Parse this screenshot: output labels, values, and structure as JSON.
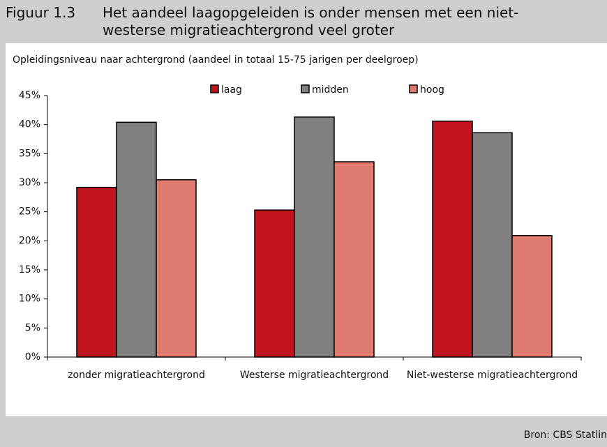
{
  "chart_data": {
    "type": "bar",
    "figure_number": "Figuur 1.3",
    "title": "Het aandeel laagopgeleiden is onder mensen met een niet-westerse migratieachtergrond veel groter",
    "subtitle": "Opleidingsniveau naar achtergrond (aandeel in totaal 15-75 jarigen per deelgroep)",
    "source": "Bron: CBS Statlin",
    "categories": [
      "zonder migratieachtergrond",
      "Westerse migratieachtergrond",
      "Niet-westerse migratieachtergrond"
    ],
    "series": [
      {
        "name": "laag",
        "color": "#c0141f",
        "values": [
          29.2,
          25.3,
          40.6
        ]
      },
      {
        "name": "midden",
        "color": "#808080",
        "values": [
          40.4,
          41.3,
          38.6
        ]
      },
      {
        "name": "hoog",
        "color": "#e07b70",
        "values": [
          30.5,
          33.6,
          20.9
        ]
      }
    ],
    "ylim": [
      0,
      45
    ],
    "yticks": [
      {
        "value": 0,
        "label": "0%"
      },
      {
        "value": 5,
        "label": "5%"
      },
      {
        "value": 10,
        "label": "10%"
      },
      {
        "value": 15,
        "label": "15%"
      },
      {
        "value": 20,
        "label": "20%"
      },
      {
        "value": 25,
        "label": "25%"
      },
      {
        "value": 30,
        "label": "30%"
      },
      {
        "value": 35,
        "label": "35%"
      },
      {
        "value": 40,
        "label": "40%"
      },
      {
        "value": 45,
        "label": "45%"
      }
    ],
    "grid": false,
    "legend": "top"
  }
}
